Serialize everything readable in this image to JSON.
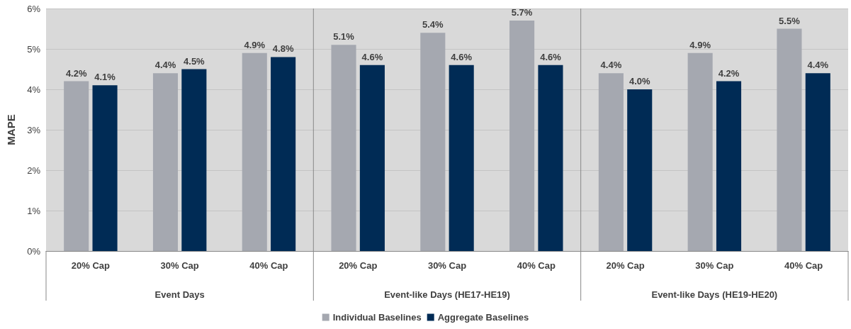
{
  "chart_data": {
    "type": "bar",
    "ylabel": "MAPE",
    "categories": [
      "20% Cap",
      "30% Cap",
      "40% Cap",
      "20% Cap",
      "30% Cap",
      "40% Cap",
      "20% Cap",
      "30% Cap",
      "40% Cap"
    ],
    "series": [
      {
        "name": "Individual Baselines",
        "color": "#a5a8b0",
        "values": [
          4.2,
          4.4,
          4.9,
          5.1,
          5.4,
          5.7,
          4.4,
          4.9,
          5.5
        ],
        "value_labels": [
          "4.2%",
          "4.4%",
          "4.9%",
          "5.1%",
          "5.4%",
          "5.7%",
          "4.4%",
          "4.9%",
          "5.5%"
        ]
      },
      {
        "name": "Aggregate Baselines",
        "color": "#002b55",
        "values": [
          4.1,
          4.5,
          4.8,
          4.6,
          4.6,
          4.6,
          4.0,
          4.2,
          4.4
        ],
        "value_labels": [
          "4.1%",
          "4.5%",
          "4.8%",
          "4.6%",
          "4.6%",
          "4.6%",
          "4.0%",
          "4.2%",
          "4.4%"
        ]
      }
    ],
    "annotations": [
      "Event Days",
      "Event-like Days (HE17-HE19)",
      "Event-like Days (HE19-HE20)"
    ],
    "ylim": [
      0,
      6
    ],
    "yticks": [
      {
        "value": 0,
        "label": "0%"
      },
      {
        "value": 1,
        "label": "1%"
      },
      {
        "value": 2,
        "label": "2%"
      },
      {
        "value": 3,
        "label": "3%"
      },
      {
        "value": 4,
        "label": "4%"
      },
      {
        "value": 5,
        "label": "5%"
      },
      {
        "value": 6,
        "label": "6%"
      }
    ],
    "grid": "y",
    "legend": "bottom"
  }
}
